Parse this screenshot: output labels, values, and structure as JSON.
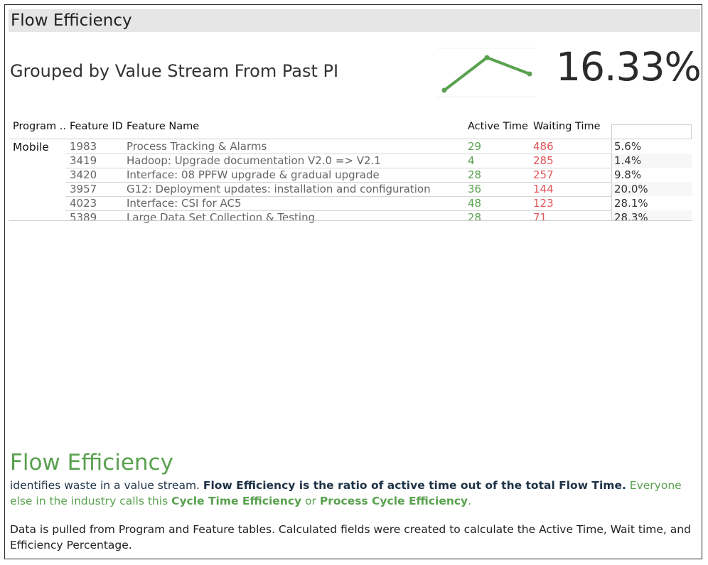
{
  "header": {
    "title": "Flow Efficiency"
  },
  "subtitle": "Grouped by Value Stream From Past PI",
  "kpi": {
    "value": "16.33%"
  },
  "sparkline": {
    "values": [
      1,
      3,
      2
    ],
    "color": "#59a14f"
  },
  "table": {
    "columns": {
      "program": "Program ..",
      "feature_id": "Feature ID",
      "feature_name": "Feature Name",
      "active_time": "Active Time",
      "waiting_time": "Waiting Time"
    },
    "program": "Mobile",
    "rows": [
      {
        "id": "1983",
        "name": "Process Tracking & Alarms",
        "active": "29",
        "waiting": "486",
        "efficiency": "5.6%"
      },
      {
        "id": "3419",
        "name": "Hadoop: Upgrade documentation V2.0  => V2.1",
        "active": "4",
        "waiting": "285",
        "efficiency": "1.4%"
      },
      {
        "id": "3420",
        "name": "Interface: 08 PPFW upgrade & gradual upgrade",
        "active": "28",
        "waiting": "257",
        "efficiency": "9.8%"
      },
      {
        "id": "3957",
        "name": "G12: Deployment updates: installation and configuration",
        "active": "36",
        "waiting": "144",
        "efficiency": "20.0%"
      },
      {
        "id": "4023",
        "name": "Interface: CSI for AC5",
        "active": "48",
        "waiting": "123",
        "efficiency": "28.1%"
      },
      {
        "id": "5389",
        "name": "Large Data Set Collection & Testing",
        "active": "28",
        "waiting": "71",
        "efficiency": "28.3%"
      }
    ]
  },
  "description": {
    "title": "Flow Efficiency",
    "p1_a": "identifies waste in a value stream. ",
    "p1_b": "Flow Efficiency is the ratio of active time out of the total Flow Time.",
    "p1_c": " Everyone else in the industry calls this ",
    "p1_d": "Cycle Time Efficiency",
    "p1_e": " or ",
    "p1_f": "Process Cycle Efficiency",
    "p1_g": ".",
    "p2": "Data is pulled from Program and Feature tables. Calculated fields were created to calculate the Active Time, Wait time, and Efficiency Percentage."
  },
  "colors": {
    "active": "#59a14f",
    "waiting": "#e15759",
    "accent": "#59a14f"
  }
}
